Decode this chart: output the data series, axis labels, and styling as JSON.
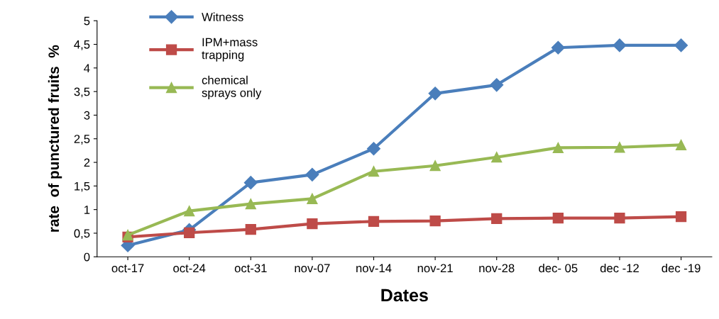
{
  "chart_data": {
    "type": "line",
    "xlabel": "Dates",
    "ylabel": "rate  of punctured fruits  %",
    "categories": [
      "oct-17",
      "oct-24",
      "oct-31",
      "nov-07",
      "nov-14",
      "nov-21",
      "nov-28",
      "dec- 05",
      "dec -12",
      "dec -19"
    ],
    "series": [
      {
        "name": "Witness",
        "color": "#4a7ebb",
        "marker": "diamond",
        "values": [
          0.24,
          0.57,
          1.57,
          1.74,
          2.29,
          3.46,
          3.64,
          4.43,
          4.48,
          4.48
        ]
      },
      {
        "name": "IPM+mass\ntrapping",
        "color": "#be4b48",
        "marker": "square",
        "values": [
          0.42,
          0.51,
          0.58,
          0.7,
          0.75,
          0.76,
          0.81,
          0.82,
          0.82,
          0.85
        ]
      },
      {
        "name": "chemical\nsprays only",
        "color": "#98b954",
        "marker": "triangle",
        "values": [
          0.46,
          0.97,
          1.12,
          1.23,
          1.81,
          1.93,
          2.11,
          2.31,
          2.32,
          2.37
        ]
      }
    ],
    "ylim": [
      0,
      5
    ],
    "yticks": [
      0,
      {
        "value": 0.5,
        "label": "0,5"
      },
      1,
      {
        "value": 1.5,
        "label": "1,5"
      },
      2,
      {
        "value": 2.5,
        "label": "2,5"
      },
      3,
      {
        "value": 3.5,
        "label": "3,5"
      },
      4,
      {
        "value": 4.5,
        "label": "4,5"
      },
      5
    ],
    "grid": false,
    "legend": "top left",
    "line_style": "solid"
  }
}
